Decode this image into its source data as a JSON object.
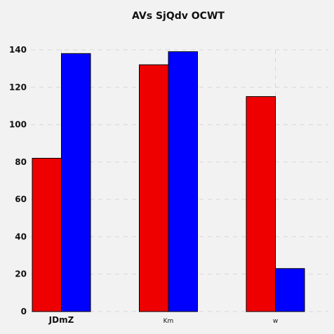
{
  "chart_data": {
    "type": "bar",
    "title": "AVs SjQdv OCWT",
    "xlabel": "",
    "ylabel": "",
    "categories": [
      "JDmZ",
      "Km",
      "w"
    ],
    "series": [
      {
        "values": [
          82,
          132,
          115
        ],
        "color": "#ee0000"
      },
      {
        "values": [
          138,
          139,
          23
        ],
        "color": "#0000ff"
      }
    ],
    "ylim": [
      0,
      140
    ],
    "yticks": [
      0,
      20,
      40,
      60,
      80,
      100,
      120,
      140
    ],
    "grid": true,
    "legend": "none"
  }
}
